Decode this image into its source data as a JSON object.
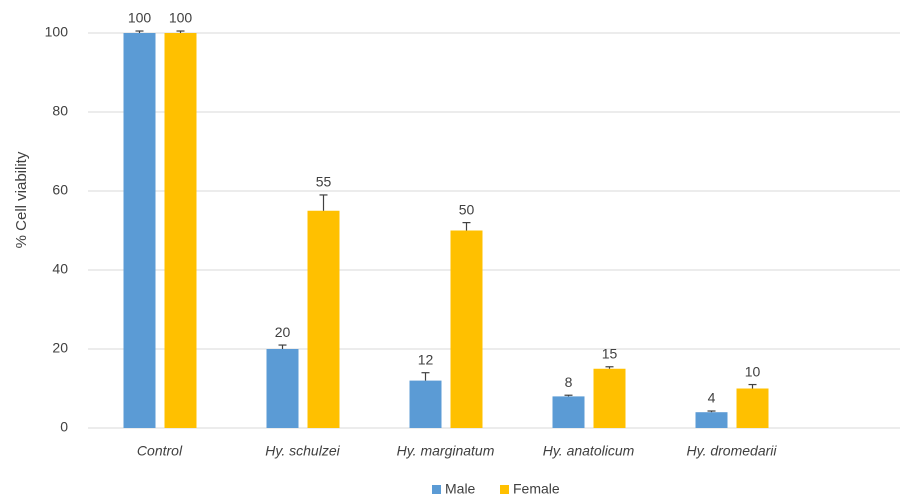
{
  "chart_data": {
    "type": "bar",
    "y_label": "% Cell viability",
    "categories": [
      "Control",
      "Hy. schulzei",
      "Hy. marginatum",
      "Hy. anatolicum",
      "Hy. dromedarii"
    ],
    "series": [
      {
        "name": "Male",
        "color": "#5b9bd5",
        "values": [
          100,
          20,
          12,
          8,
          4
        ],
        "errors": [
          0.5,
          1,
          2,
          0.3,
          0.3
        ]
      },
      {
        "name": "Female",
        "color": "#ffc000",
        "values": [
          100,
          55,
          50,
          15,
          10
        ],
        "errors": [
          0.5,
          4,
          2,
          0.5,
          1
        ]
      }
    ],
    "ylim": [
      0,
      100
    ],
    "yticks": [
      0,
      20,
      40,
      60,
      80,
      100
    ],
    "grid": true,
    "legend": "bottom"
  }
}
